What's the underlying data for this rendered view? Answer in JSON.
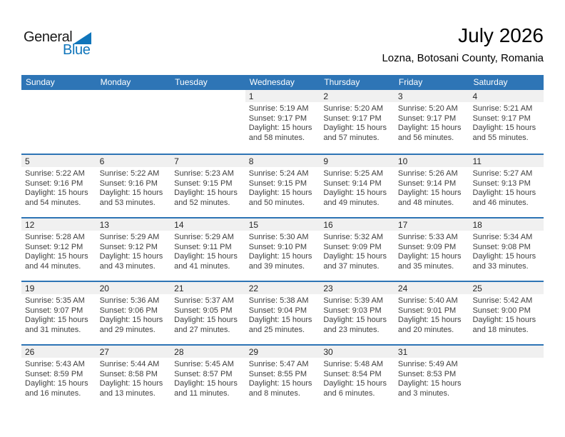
{
  "colors": {
    "header_blue": "#2e75b6",
    "separator_blue": "#2e74b5",
    "strip_gray": "#f0f0f0",
    "logo_blue": "#0f75bb",
    "text_dark": "#3f3f3f"
  },
  "logo": {
    "general": "General",
    "blue": "Blue"
  },
  "header": {
    "title": "July 2026",
    "location": "Lozna, Botosani County, Romania"
  },
  "calendar": {
    "weekdays": [
      "Sunday",
      "Monday",
      "Tuesday",
      "Wednesday",
      "Thursday",
      "Friday",
      "Saturday"
    ],
    "weeks": [
      [
        null,
        null,
        null,
        {
          "day": "1",
          "lines": [
            "Sunrise: 5:19 AM",
            "Sunset: 9:17 PM",
            "Daylight: 15 hours",
            "and 58 minutes."
          ]
        },
        {
          "day": "2",
          "lines": [
            "Sunrise: 5:20 AM",
            "Sunset: 9:17 PM",
            "Daylight: 15 hours",
            "and 57 minutes."
          ]
        },
        {
          "day": "3",
          "lines": [
            "Sunrise: 5:20 AM",
            "Sunset: 9:17 PM",
            "Daylight: 15 hours",
            "and 56 minutes."
          ]
        },
        {
          "day": "4",
          "lines": [
            "Sunrise: 5:21 AM",
            "Sunset: 9:17 PM",
            "Daylight: 15 hours",
            "and 55 minutes."
          ]
        }
      ],
      [
        {
          "day": "5",
          "lines": [
            "Sunrise: 5:22 AM",
            "Sunset: 9:16 PM",
            "Daylight: 15 hours",
            "and 54 minutes."
          ]
        },
        {
          "day": "6",
          "lines": [
            "Sunrise: 5:22 AM",
            "Sunset: 9:16 PM",
            "Daylight: 15 hours",
            "and 53 minutes."
          ]
        },
        {
          "day": "7",
          "lines": [
            "Sunrise: 5:23 AM",
            "Sunset: 9:15 PM",
            "Daylight: 15 hours",
            "and 52 minutes."
          ]
        },
        {
          "day": "8",
          "lines": [
            "Sunrise: 5:24 AM",
            "Sunset: 9:15 PM",
            "Daylight: 15 hours",
            "and 50 minutes."
          ]
        },
        {
          "day": "9",
          "lines": [
            "Sunrise: 5:25 AM",
            "Sunset: 9:14 PM",
            "Daylight: 15 hours",
            "and 49 minutes."
          ]
        },
        {
          "day": "10",
          "lines": [
            "Sunrise: 5:26 AM",
            "Sunset: 9:14 PM",
            "Daylight: 15 hours",
            "and 48 minutes."
          ]
        },
        {
          "day": "11",
          "lines": [
            "Sunrise: 5:27 AM",
            "Sunset: 9:13 PM",
            "Daylight: 15 hours",
            "and 46 minutes."
          ]
        }
      ],
      [
        {
          "day": "12",
          "lines": [
            "Sunrise: 5:28 AM",
            "Sunset: 9:12 PM",
            "Daylight: 15 hours",
            "and 44 minutes."
          ]
        },
        {
          "day": "13",
          "lines": [
            "Sunrise: 5:29 AM",
            "Sunset: 9:12 PM",
            "Daylight: 15 hours",
            "and 43 minutes."
          ]
        },
        {
          "day": "14",
          "lines": [
            "Sunrise: 5:29 AM",
            "Sunset: 9:11 PM",
            "Daylight: 15 hours",
            "and 41 minutes."
          ]
        },
        {
          "day": "15",
          "lines": [
            "Sunrise: 5:30 AM",
            "Sunset: 9:10 PM",
            "Daylight: 15 hours",
            "and 39 minutes."
          ]
        },
        {
          "day": "16",
          "lines": [
            "Sunrise: 5:32 AM",
            "Sunset: 9:09 PM",
            "Daylight: 15 hours",
            "and 37 minutes."
          ]
        },
        {
          "day": "17",
          "lines": [
            "Sunrise: 5:33 AM",
            "Sunset: 9:09 PM",
            "Daylight: 15 hours",
            "and 35 minutes."
          ]
        },
        {
          "day": "18",
          "lines": [
            "Sunrise: 5:34 AM",
            "Sunset: 9:08 PM",
            "Daylight: 15 hours",
            "and 33 minutes."
          ]
        }
      ],
      [
        {
          "day": "19",
          "lines": [
            "Sunrise: 5:35 AM",
            "Sunset: 9:07 PM",
            "Daylight: 15 hours",
            "and 31 minutes."
          ]
        },
        {
          "day": "20",
          "lines": [
            "Sunrise: 5:36 AM",
            "Sunset: 9:06 PM",
            "Daylight: 15 hours",
            "and 29 minutes."
          ]
        },
        {
          "day": "21",
          "lines": [
            "Sunrise: 5:37 AM",
            "Sunset: 9:05 PM",
            "Daylight: 15 hours",
            "and 27 minutes."
          ]
        },
        {
          "day": "22",
          "lines": [
            "Sunrise: 5:38 AM",
            "Sunset: 9:04 PM",
            "Daylight: 15 hours",
            "and 25 minutes."
          ]
        },
        {
          "day": "23",
          "lines": [
            "Sunrise: 5:39 AM",
            "Sunset: 9:03 PM",
            "Daylight: 15 hours",
            "and 23 minutes."
          ]
        },
        {
          "day": "24",
          "lines": [
            "Sunrise: 5:40 AM",
            "Sunset: 9:01 PM",
            "Daylight: 15 hours",
            "and 20 minutes."
          ]
        },
        {
          "day": "25",
          "lines": [
            "Sunrise: 5:42 AM",
            "Sunset: 9:00 PM",
            "Daylight: 15 hours",
            "and 18 minutes."
          ]
        }
      ],
      [
        {
          "day": "26",
          "lines": [
            "Sunrise: 5:43 AM",
            "Sunset: 8:59 PM",
            "Daylight: 15 hours",
            "and 16 minutes."
          ]
        },
        {
          "day": "27",
          "lines": [
            "Sunrise: 5:44 AM",
            "Sunset: 8:58 PM",
            "Daylight: 15 hours",
            "and 13 minutes."
          ]
        },
        {
          "day": "28",
          "lines": [
            "Sunrise: 5:45 AM",
            "Sunset: 8:57 PM",
            "Daylight: 15 hours",
            "and 11 minutes."
          ]
        },
        {
          "day": "29",
          "lines": [
            "Sunrise: 5:47 AM",
            "Sunset: 8:55 PM",
            "Daylight: 15 hours",
            "and 8 minutes."
          ]
        },
        {
          "day": "30",
          "lines": [
            "Sunrise: 5:48 AM",
            "Sunset: 8:54 PM",
            "Daylight: 15 hours",
            "and 6 minutes."
          ]
        },
        {
          "day": "31",
          "lines": [
            "Sunrise: 5:49 AM",
            "Sunset: 8:53 PM",
            "Daylight: 15 hours",
            "and 3 minutes."
          ]
        },
        null
      ]
    ]
  }
}
